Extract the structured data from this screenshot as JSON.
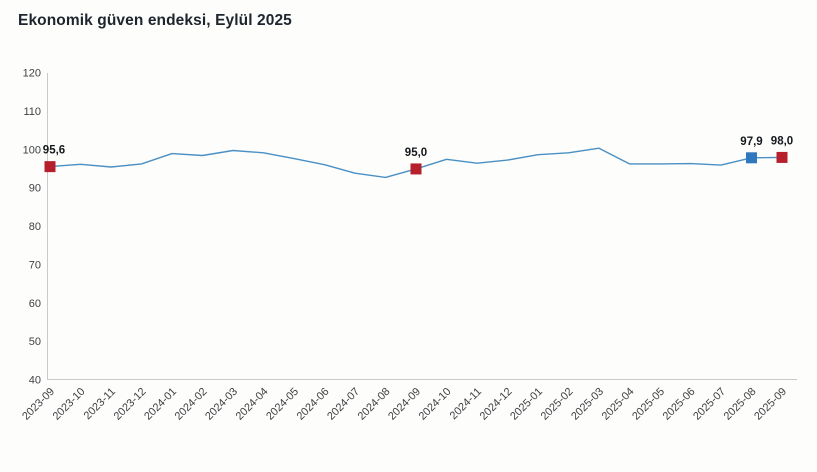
{
  "chart_data": {
    "type": "line",
    "title": "Ekonomik güven endeksi, Eylül 2025",
    "x": [
      "2023-09",
      "2023-10",
      "2023-11",
      "2023-12",
      "2024-01",
      "2024-02",
      "2024-03",
      "2024-04",
      "2024-05",
      "2024-06",
      "2024-07",
      "2024-08",
      "2024-09",
      "2024-10",
      "2024-11",
      "2024-12",
      "2025-01",
      "2025-02",
      "2025-03",
      "2025-04",
      "2025-05",
      "2025-06",
      "2025-07",
      "2025-08",
      "2025-09"
    ],
    "values": [
      95.6,
      96.2,
      95.5,
      96.3,
      99.0,
      98.5,
      99.8,
      99.2,
      97.7,
      96.1,
      93.9,
      92.8,
      95.0,
      97.5,
      96.5,
      97.3,
      98.7,
      99.2,
      100.4,
      96.3,
      96.3,
      96.4,
      96.0,
      97.9,
      98.0
    ],
    "ylim": [
      40,
      120
    ],
    "ytick_step": 10,
    "ytick_labels": [
      "40",
      "50",
      "60",
      "70",
      "80",
      "90",
      "100",
      "110",
      "120"
    ],
    "grid": false,
    "legend": false,
    "line_color": "#4a90c4",
    "axis_color": "#c9cacb",
    "tick_label_color": "#3f4245",
    "data_label_color": "#14181c",
    "labeled_points": [
      {
        "month": "2023-09",
        "value_label": "95,6",
        "marker_color": "#b5202c"
      },
      {
        "month": "2024-09",
        "value_label": "95,0",
        "marker_color": "#b5202c"
      },
      {
        "month": "2025-08",
        "value_label": "97,9",
        "marker_color": "#2f78bd"
      },
      {
        "month": "2025-09",
        "value_label": "98,0",
        "marker_color": "#b5202c"
      }
    ]
  }
}
